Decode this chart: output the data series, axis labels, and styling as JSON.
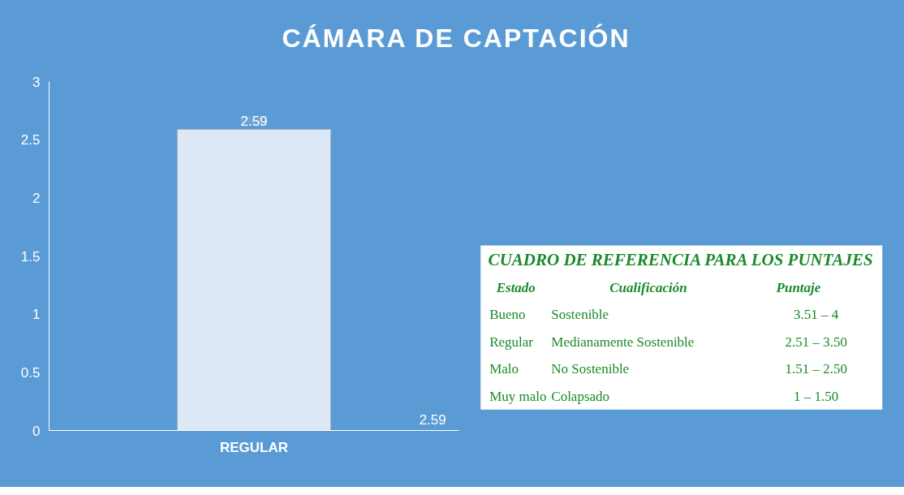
{
  "chart_data": {
    "type": "bar",
    "title": "CÁMARA DE CAPTACIÓN",
    "categories": [
      "REGULAR"
    ],
    "series": [
      {
        "name": "2.59",
        "color": "#dde8f6",
        "values": [
          2.59
        ]
      }
    ],
    "ylim": [
      0,
      3
    ],
    "yticks": [
      0,
      0.5,
      1,
      1.5,
      2,
      2.5,
      3
    ],
    "grid": false,
    "legend": false,
    "data_labels": true,
    "annotations": [
      "CUADRO DE REFERENCIA PARA LOS PUNTAJES",
      "Estado",
      "Cualificación",
      "Puntaje",
      "Bueno",
      "Sostenible",
      "3.51 – 4",
      "Regular",
      "Medianamente Sostenible",
      "2.51 – 3.50",
      "Malo",
      "No Sostenible",
      "1.51 – 2.50",
      "Muy malo",
      "Colapsado",
      "1 – 1.50"
    ]
  }
}
